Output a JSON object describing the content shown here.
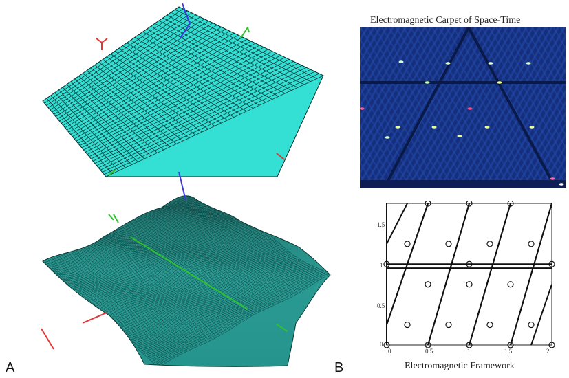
{
  "panel_labels": {
    "left": "A",
    "right": "B"
  },
  "carpet": {
    "title": "Electromagnetic Carpet of Space-Time"
  },
  "framework": {
    "title": "Electromagnetic Framework",
    "x_ticks": [
      "0",
      "0.5",
      "1",
      "1.5",
      "2"
    ],
    "y_ticks": [
      "0",
      "0.5",
      "1",
      "1.5"
    ]
  },
  "colors": {
    "flat_mesh": "#34e0d4",
    "wavy_mesh": "#2a9b93",
    "mesh_lines": "#0b2a2a",
    "carpet_bg": "#14307a",
    "axis_red": "#e03838",
    "axis_green": "#2ec22e",
    "axis_blue": "#3a3ae0"
  }
}
